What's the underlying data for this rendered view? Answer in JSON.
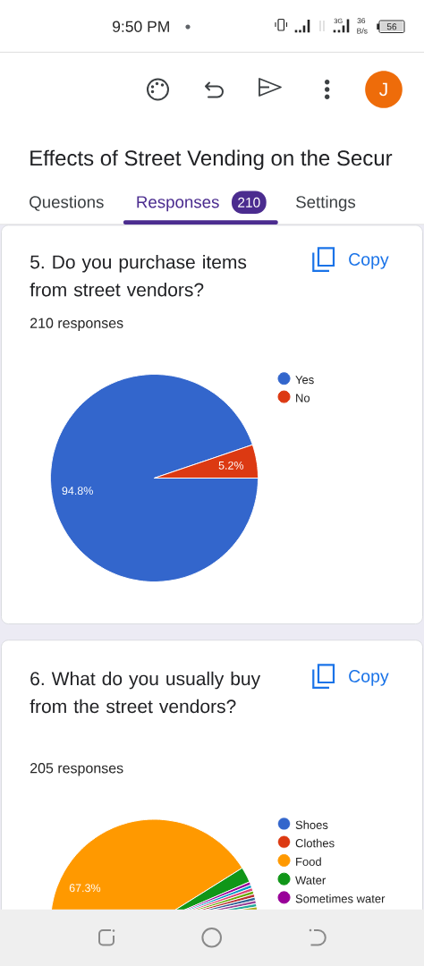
{
  "chart_data": [
    {
      "type": "other",
      "title": "Effects of Street Vending on the Secur",
      "annotations": [
        "9:50 PM",
        "3G",
        "36",
        "B/s",
        "56",
        "J",
        "Questions",
        "Responses",
        "210",
        "Settings"
      ]
    },
    {
      "type": "pie",
      "title": "5. Do you purchase items from street vendors?",
      "subtitle": "210 responses",
      "annotations": [
        "Copy"
      ],
      "categories": [
        "Yes",
        "No"
      ],
      "values": [
        94.8,
        5.2
      ],
      "colors": [
        "#3366cc",
        "#dc3912"
      ],
      "value_labels": [
        "94.8%",
        "5.2%"
      ],
      "legend": "top right"
    },
    {
      "type": "pie",
      "title": "6. What do you usually buy from the street vendors?",
      "subtitle": "205 responses",
      "annotations": [
        "Copy"
      ],
      "categories": [
        "Shoes",
        "Clothes",
        "Food",
        "Water",
        "Sometimes water",
        null,
        null,
        null,
        null,
        null,
        null,
        null,
        null,
        null
      ],
      "values": [
        null,
        null,
        67.3,
        2.4,
        0.5,
        0.5,
        0.5,
        0.5,
        0.5,
        0.5,
        0.5,
        0.5,
        0.5,
        0.5
      ],
      "colors": [
        "#3366cc",
        "#dc3912",
        "#ff9900",
        "#109618",
        "#990099",
        "#0099c6",
        "#dd4477",
        "#66aa00",
        "#b82e2e",
        "#316395",
        "#994499",
        "#22aa99",
        "#aaaa11",
        "#6633cc"
      ],
      "value_labels": [
        null,
        null,
        "67.3%",
        null,
        null,
        null,
        null,
        null,
        null,
        null,
        null,
        null,
        null,
        null
      ],
      "legend": "top right"
    }
  ]
}
